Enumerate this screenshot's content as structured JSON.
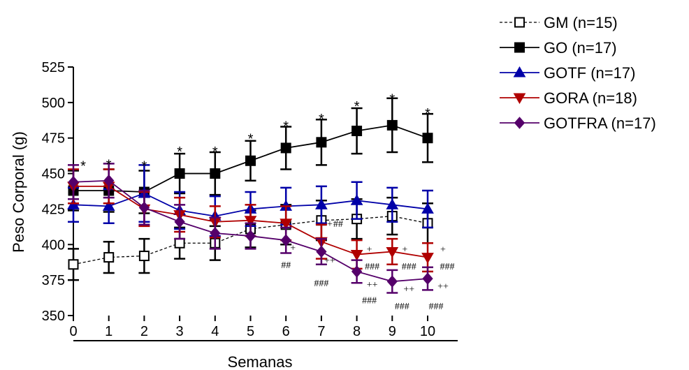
{
  "chart_data": {
    "type": "line",
    "title": "",
    "xlabel": "Semanas",
    "ylabel": "Peso Corporal (g)",
    "x": [
      0,
      1,
      2,
      3,
      4,
      5,
      6,
      7,
      8,
      9,
      10
    ],
    "xlim": [
      0,
      10
    ],
    "ylim": [
      350,
      525
    ],
    "yticks": [
      350,
      375,
      400,
      425,
      450,
      475,
      500,
      525
    ],
    "grid": false,
    "legend_position": "top-right",
    "series": [
      {
        "name": "GM (n=15)",
        "color": "#000000",
        "marker": "open-square",
        "line": "dashed",
        "values": [
          386,
          391,
          392,
          401,
          401,
          411,
          414,
          417,
          418,
          420,
          415
        ],
        "error": [
          11,
          11,
          12,
          11,
          12,
          13,
          14,
          14,
          14,
          13,
          14
        ]
      },
      {
        "name": "GO (n=17)",
        "color": "#000000",
        "marker": "filled-square",
        "line": "solid",
        "values": [
          438,
          438,
          437,
          450,
          450,
          459,
          468,
          472,
          480,
          484,
          475
        ],
        "error": [
          14,
          15,
          15,
          14,
          15,
          14,
          15,
          16,
          16,
          19,
          17
        ]
      },
      {
        "name": "GOTF (n=17)",
        "color": "#0000a8",
        "marker": "filled-triangle-up",
        "line": "solid",
        "values": [
          428,
          427,
          436,
          424,
          420,
          425,
          427,
          428,
          431,
          428,
          425
        ],
        "error": [
          12,
          12,
          20,
          13,
          14,
          12,
          13,
          13,
          13,
          12,
          13
        ]
      },
      {
        "name": "GORA (n=18)",
        "color": "#b00000",
        "marker": "filled-triangle-down",
        "line": "solid",
        "values": [
          441,
          441,
          425,
          421,
          416,
          417,
          415,
          402,
          393,
          395,
          391
        ],
        "error": [
          12,
          12,
          12,
          12,
          11,
          11,
          12,
          12,
          10,
          9,
          10
        ]
      },
      {
        "name": "GOTFRA (n=17)",
        "color": "#55006a",
        "marker": "filled-diamond",
        "line": "solid",
        "values": [
          444,
          445,
          426,
          416,
          408,
          406,
          403,
          395,
          381,
          374,
          376
        ],
        "error": [
          12,
          12,
          12,
          12,
          11,
          9,
          9,
          9,
          8,
          8,
          8
        ]
      }
    ],
    "annotations": [
      {
        "x": 0,
        "y": 458,
        "text": "*",
        "dx": 14
      },
      {
        "x": 1,
        "y": 459,
        "text": "*"
      },
      {
        "x": 2,
        "y": 458,
        "text": "*"
      },
      {
        "x": 3,
        "y": 468,
        "text": "*"
      },
      {
        "x": 4,
        "y": 468,
        "text": "*"
      },
      {
        "x": 5,
        "y": 477,
        "text": "*"
      },
      {
        "x": 6,
        "y": 486,
        "text": "*"
      },
      {
        "x": 7,
        "y": 491,
        "text": "*"
      },
      {
        "x": 8,
        "y": 500,
        "text": "*"
      },
      {
        "x": 9,
        "y": 505,
        "text": "*"
      },
      {
        "x": 10,
        "y": 495,
        "text": "*"
      },
      {
        "x": 6,
        "y": 398,
        "text": "+",
        "dx": 10,
        "small": true
      },
      {
        "x": 6,
        "y": 386,
        "text": "##",
        "small": true
      },
      {
        "x": 7,
        "y": 415,
        "text": "##",
        "dx": 24,
        "small": true
      },
      {
        "x": 7,
        "y": 415,
        "text": "+",
        "dx": 12,
        "small": true
      },
      {
        "x": 7,
        "y": 389,
        "text": "++",
        "dx": 12,
        "small": true
      },
      {
        "x": 7,
        "y": 373,
        "text": "###",
        "small": true
      },
      {
        "x": 8,
        "y": 397,
        "text": "+",
        "dx": 18,
        "small": true
      },
      {
        "x": 8,
        "y": 385,
        "text": "###",
        "dx": 22,
        "small": true
      },
      {
        "x": 8,
        "y": 372,
        "text": "++",
        "dx": 22,
        "small": true
      },
      {
        "x": 8,
        "y": 361,
        "text": "###",
        "dx": 18,
        "small": true
      },
      {
        "x": 9,
        "y": 397,
        "text": "+",
        "dx": 18,
        "small": true
      },
      {
        "x": 9,
        "y": 385,
        "text": "###",
        "dx": 24,
        "small": true
      },
      {
        "x": 9,
        "y": 369,
        "text": "++",
        "dx": 24,
        "small": true
      },
      {
        "x": 9,
        "y": 357,
        "text": "###",
        "dx": 14,
        "small": true
      },
      {
        "x": 10,
        "y": 397,
        "text": "+",
        "dx": 22,
        "small": true
      },
      {
        "x": 10,
        "y": 385,
        "text": "###",
        "dx": 28,
        "small": true
      },
      {
        "x": 10,
        "y": 371,
        "text": "++",
        "dx": 22,
        "small": true
      },
      {
        "x": 10,
        "y": 357,
        "text": "###",
        "dx": 12,
        "small": true
      }
    ]
  }
}
